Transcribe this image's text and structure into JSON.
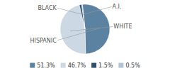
{
  "chart_data": {
    "type": "pie",
    "categories": [
      "HISPANIC",
      "WHITE",
      "BLACK",
      "A.I."
    ],
    "values": [
      51.3,
      46.7,
      1.5,
      0.5
    ],
    "value_labels": [
      "51.3%",
      "46.7%",
      "1.5%",
      "0.5%"
    ],
    "colors": [
      "#5b82a0",
      "#ccd9e5",
      "#2e4e6e",
      "#b0c4d4"
    ],
    "legend": "bottom"
  }
}
